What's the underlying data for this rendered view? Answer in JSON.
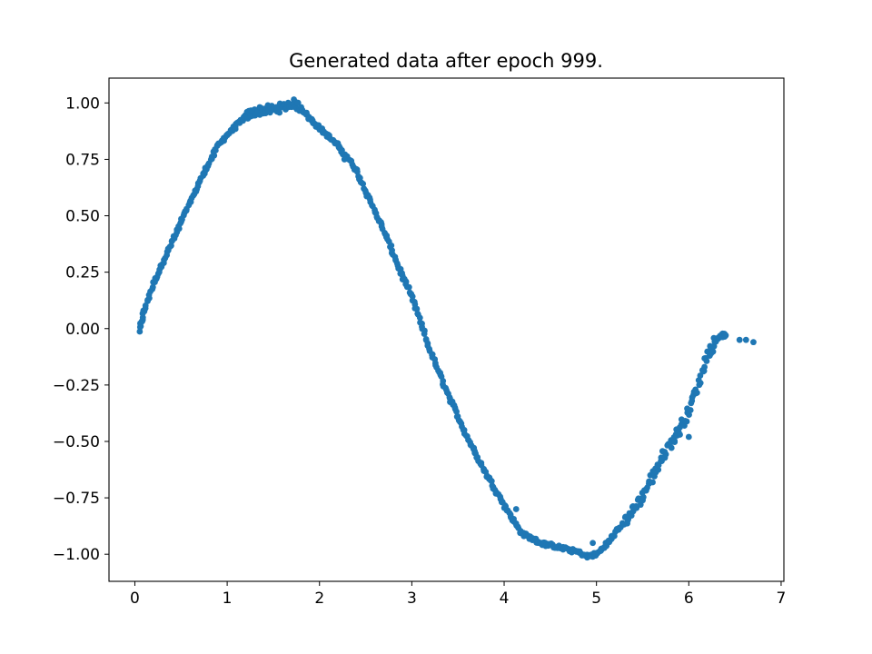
{
  "chart_data": {
    "type": "scatter",
    "title": "Generated data after epoch 999.",
    "xlabel": "",
    "ylabel": "",
    "xlim": [
      -0.28,
      7.03
    ],
    "ylim": [
      -1.12,
      1.11
    ],
    "x_ticks": [
      0,
      1,
      2,
      3,
      4,
      5,
      6,
      7
    ],
    "x_tick_labels": [
      "0",
      "1",
      "2",
      "3",
      "4",
      "5",
      "6",
      "7"
    ],
    "y_ticks": [
      1.0,
      0.75,
      0.5,
      0.25,
      0.0,
      -0.25,
      -0.5,
      -0.75,
      -1.0
    ],
    "y_tick_labels": [
      "1.00",
      "0.75",
      "0.50",
      "0.25",
      "0.00",
      "−0.25",
      "−0.50",
      "−0.75",
      "−1.00"
    ],
    "grid": false,
    "legend": "none",
    "marker_color": "#1f77b4",
    "trend_points": [
      [
        0.05,
        -0.01
      ],
      [
        0.1,
        0.08
      ],
      [
        0.2,
        0.2
      ],
      [
        0.3,
        0.29
      ],
      [
        0.4,
        0.38
      ],
      [
        0.5,
        0.47
      ],
      [
        0.6,
        0.56
      ],
      [
        0.7,
        0.65
      ],
      [
        0.8,
        0.73
      ],
      [
        0.9,
        0.81
      ],
      [
        1.0,
        0.86
      ],
      [
        1.1,
        0.9
      ],
      [
        1.2,
        0.94
      ],
      [
        1.3,
        0.96
      ],
      [
        1.4,
        0.97
      ],
      [
        1.5,
        0.97
      ],
      [
        1.6,
        0.98
      ],
      [
        1.7,
        1.0
      ],
      [
        1.8,
        0.98
      ],
      [
        1.9,
        0.93
      ],
      [
        2.0,
        0.89
      ],
      [
        2.1,
        0.85
      ],
      [
        2.2,
        0.81
      ],
      [
        2.3,
        0.76
      ],
      [
        2.4,
        0.7
      ],
      [
        2.5,
        0.61
      ],
      [
        2.6,
        0.52
      ],
      [
        2.7,
        0.43
      ],
      [
        2.8,
        0.33
      ],
      [
        2.9,
        0.23
      ],
      [
        3.0,
        0.14
      ],
      [
        3.1,
        0.02
      ],
      [
        3.2,
        -0.1
      ],
      [
        3.3,
        -0.2
      ],
      [
        3.4,
        -0.3
      ],
      [
        3.5,
        -0.39
      ],
      [
        3.6,
        -0.48
      ],
      [
        3.7,
        -0.56
      ],
      [
        3.8,
        -0.64
      ],
      [
        3.9,
        -0.71
      ],
      [
        4.0,
        -0.78
      ],
      [
        4.1,
        -0.85
      ],
      [
        4.2,
        -0.91
      ],
      [
        4.3,
        -0.93
      ],
      [
        4.4,
        -0.95
      ],
      [
        4.5,
        -0.96
      ],
      [
        4.6,
        -0.97
      ],
      [
        4.7,
        -0.98
      ],
      [
        4.8,
        -0.99
      ],
      [
        4.9,
        -1.01
      ],
      [
        5.0,
        -1.0
      ],
      [
        5.1,
        -0.96
      ],
      [
        5.2,
        -0.91
      ],
      [
        5.3,
        -0.86
      ],
      [
        5.4,
        -0.8
      ],
      [
        5.5,
        -0.74
      ],
      [
        5.6,
        -0.66
      ],
      [
        5.7,
        -0.58
      ],
      [
        5.8,
        -0.51
      ],
      [
        5.9,
        -0.45
      ],
      [
        6.0,
        -0.36
      ],
      [
        6.1,
        -0.25
      ],
      [
        6.2,
        -0.12
      ],
      [
        6.3,
        -0.05
      ],
      [
        6.35,
        -0.03
      ],
      [
        6.4,
        -0.03
      ]
    ],
    "outlier_points": [
      [
        6.55,
        -0.05
      ],
      [
        6.62,
        -0.05
      ],
      [
        6.7,
        -0.06
      ],
      [
        6.17,
        -0.17
      ],
      [
        3.84,
        -0.66
      ],
      [
        4.13,
        -0.8
      ],
      [
        2.27,
        0.75
      ],
      [
        4.96,
        -0.95
      ],
      [
        6.0,
        -0.48
      ]
    ]
  }
}
